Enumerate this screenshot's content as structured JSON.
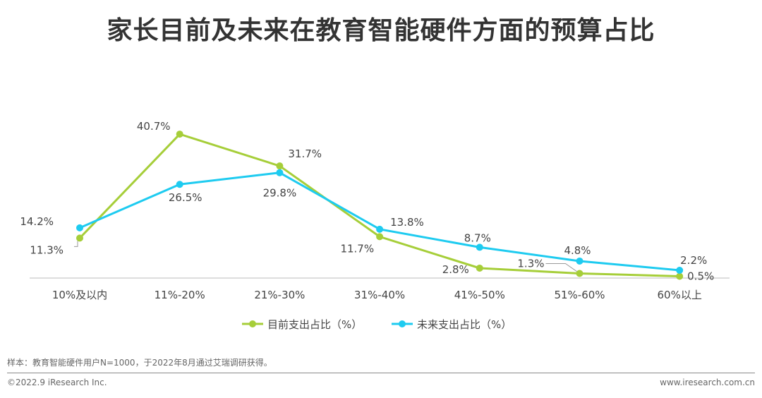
{
  "chart_data": {
    "type": "line",
    "title": "家长目前及未来在教育智能硬件方面的预算占比",
    "categories": [
      "10%及以内",
      "11%-20%",
      "21%-30%",
      "31%-40%",
      "41%-50%",
      "51%-60%",
      "60%以上"
    ],
    "series": [
      {
        "name": "目前支出占比（%）",
        "color": "#a6ce39",
        "values": [
          11.3,
          40.7,
          31.7,
          11.7,
          2.8,
          1.3,
          0.5
        ]
      },
      {
        "name": "未来支出占比（%）",
        "color": "#1ecbf0",
        "values": [
          14.2,
          26.5,
          29.8,
          13.8,
          8.7,
          4.8,
          2.2
        ]
      }
    ],
    "xlabel": "",
    "ylabel": "",
    "ylim": [
      0,
      45
    ],
    "grid": false,
    "legend": "bottom"
  },
  "footer": {
    "note": "样本：教育智能硬件用户N=1000，于2022年8月通过艾瑞调研获得。",
    "copyright": "©2022.9 iResearch Inc.",
    "website": "www.iresearch.com.cn"
  }
}
